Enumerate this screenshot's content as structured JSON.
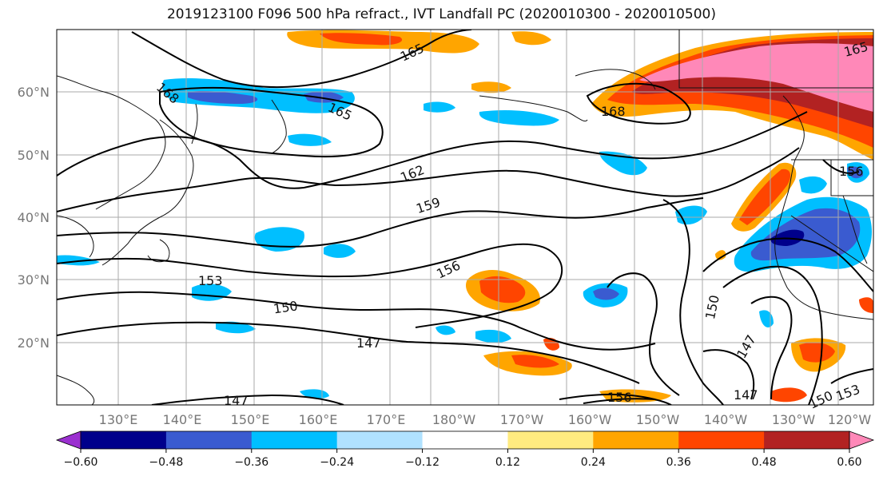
{
  "title": "2019123100 F096 500 hPa refract., IVT Landfall PC (2020010300 - 2020010500)",
  "lat_labels": [
    "60°N",
    "50°N",
    "40°N",
    "30°N",
    "20°N"
  ],
  "lon_labels": [
    "130°E",
    "140°E",
    "150°E",
    "160°E",
    "170°E",
    "180°W",
    "170°W",
    "160°W",
    "150°W",
    "140°W",
    "130°W",
    "120°W"
  ],
  "contour_labels": [
    "165",
    "168",
    "165",
    "168",
    "162",
    "159",
    "156",
    "153",
    "150",
    "147",
    "147",
    "150",
    "147",
    "150",
    "153",
    "147",
    "156",
    "156"
  ],
  "colorbar": {
    "colors": [
      "#9b30d0",
      "#00008b",
      "#3a5bd0",
      "#00bfff",
      "#b0e2ff",
      "#ffffff",
      "#ffeb80",
      "#ffa500",
      "#ff4500",
      "#b22222",
      "#ff88b8"
    ],
    "ticks": [
      "−0.60",
      "−0.48",
      "−0.36",
      "−0.24",
      "−0.12",
      "0.12",
      "0.24",
      "0.36",
      "0.48",
      "0.60"
    ]
  }
}
